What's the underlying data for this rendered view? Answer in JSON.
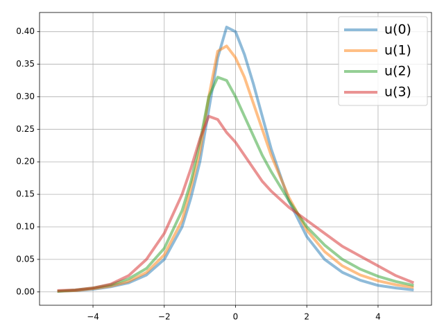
{
  "chart_data": {
    "type": "line",
    "x": [
      -5,
      -4.5,
      -4,
      -3.5,
      -3,
      -2.5,
      -2,
      -1.5,
      -1.25,
      -1,
      -0.75,
      -0.5,
      -0.25,
      0,
      0.25,
      0.5,
      0.75,
      1,
      1.5,
      2,
      2.5,
      3,
      3.5,
      4,
      4.5,
      5
    ],
    "series": [
      {
        "name": "u(0)",
        "color": "#1f77b4",
        "values": [
          0.001,
          0.002,
          0.004,
          0.008,
          0.014,
          0.026,
          0.05,
          0.1,
          0.145,
          0.2,
          0.28,
          0.36,
          0.407,
          0.4,
          0.365,
          0.32,
          0.27,
          0.22,
          0.14,
          0.085,
          0.05,
          0.03,
          0.018,
          0.01,
          0.006,
          0.003
        ]
      },
      {
        "name": "u(1)",
        "color": "#ff7f0e",
        "values": [
          0.001,
          0.002,
          0.005,
          0.009,
          0.016,
          0.03,
          0.057,
          0.11,
          0.16,
          0.215,
          0.3,
          0.37,
          0.378,
          0.36,
          0.33,
          0.29,
          0.25,
          0.21,
          0.145,
          0.095,
          0.062,
          0.04,
          0.026,
          0.017,
          0.011,
          0.007
        ]
      },
      {
        "name": "u(2)",
        "color": "#2ca02c",
        "values": [
          0.001,
          0.003,
          0.006,
          0.011,
          0.02,
          0.036,
          0.067,
          0.125,
          0.17,
          0.23,
          0.3,
          0.33,
          0.325,
          0.3,
          0.27,
          0.24,
          0.21,
          0.185,
          0.14,
          0.1,
          0.072,
          0.05,
          0.035,
          0.024,
          0.016,
          0.01
        ]
      },
      {
        "name": "u(3)",
        "color": "#d62728",
        "values": [
          0.002,
          0.003,
          0.006,
          0.012,
          0.025,
          0.05,
          0.09,
          0.15,
          0.19,
          0.235,
          0.27,
          0.265,
          0.245,
          0.23,
          0.21,
          0.19,
          0.17,
          0.155,
          0.13,
          0.11,
          0.09,
          0.07,
          0.055,
          0.04,
          0.025,
          0.014
        ]
      }
    ],
    "xlim": [
      -5.5,
      5.5
    ],
    "ylim": [
      -0.0205,
      0.4295
    ],
    "xticks": [
      {
        "value": -4,
        "label": "−4"
      },
      {
        "value": -2,
        "label": "−2"
      },
      0,
      2,
      4
    ],
    "yticks": [
      {
        "value": 0,
        "label": "0.00"
      },
      {
        "value": 0.05,
        "label": "0.05"
      },
      {
        "value": 0.1,
        "label": "0.10"
      },
      {
        "value": 0.15,
        "label": "0.15"
      },
      {
        "value": 0.2,
        "label": "0.20"
      },
      {
        "value": 0.25,
        "label": "0.25"
      },
      {
        "value": 0.3,
        "label": "0.30"
      },
      {
        "value": 0.35,
        "label": "0.35"
      },
      {
        "value": 0.4,
        "label": "0.40"
      }
    ],
    "grid": true,
    "legend": "upper right",
    "line_alpha": 0.5
  }
}
